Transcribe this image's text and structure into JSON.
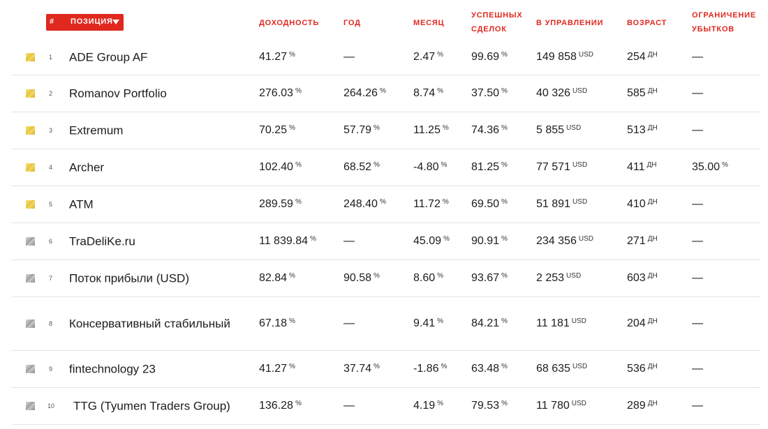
{
  "header": {
    "hash": "#",
    "position": "ПОЗИЦИЯ",
    "returns": "ДОХОДНОСТЬ",
    "year": "ГОД",
    "month": "МЕСЯЦ",
    "success_line1": "УСПЕШНЫХ",
    "success_line2": "СДЕЛОК",
    "managed": "В УПРАВЛЕНИИ",
    "age": "ВОЗРАСТ",
    "loss_line1": "ОГРАНИЧЕНИЕ",
    "loss_line2": "УБЫТКОВ"
  },
  "units": {
    "pct": "%",
    "usd": "USD",
    "days": "ДН"
  },
  "rows": [
    {
      "rank": "1",
      "name": "ADE Group AF",
      "flag": "gold",
      "returns": "41.27",
      "year": "—",
      "month": "2.47",
      "success": "99.69",
      "managed": "149 858",
      "age": "254",
      "loss": "—"
    },
    {
      "rank": "2",
      "name": "Romanov Portfolio",
      "flag": "gold",
      "returns": "276.03",
      "year": "264.26",
      "month": "8.74",
      "success": "37.50",
      "managed": "40 326",
      "age": "585",
      "loss": "—"
    },
    {
      "rank": "3",
      "name": "Extremum",
      "flag": "gold",
      "returns": "70.25",
      "year": "57.79",
      "month": "11.25",
      "success": "74.36",
      "managed": "5 855",
      "age": "513",
      "loss": "—"
    },
    {
      "rank": "4",
      "name": "Archer",
      "flag": "gold",
      "returns": "102.40",
      "year": "68.52",
      "month": "-4.80",
      "success": "81.25",
      "managed": "77 571",
      "age": "411",
      "loss": "35.00"
    },
    {
      "rank": "5",
      "name": "ATM",
      "flag": "gold",
      "returns": "289.59",
      "year": "248.40",
      "month": "11.72",
      "success": "69.50",
      "managed": "51 891",
      "age": "410",
      "loss": "—"
    },
    {
      "rank": "6",
      "name": "TraDeliKe.ru",
      "flag": "gray",
      "returns": "11 839.84",
      "year": "—",
      "month": "45.09",
      "success": "90.91",
      "managed": "234 356",
      "age": "271",
      "loss": "—"
    },
    {
      "rank": "7",
      "name": "Поток прибыли (USD)",
      "flag": "gray",
      "returns": "82.84",
      "year": "90.58",
      "month": "8.60",
      "success": "93.67",
      "managed": "2 253",
      "age": "603",
      "loss": "—"
    },
    {
      "rank": "8",
      "name": "Консервативный стабильный",
      "flag": "gray",
      "returns": "67.18",
      "year": "—",
      "month": "9.41",
      "success": "84.21",
      "managed": "11 181",
      "age": "204",
      "loss": "—"
    },
    {
      "rank": "9",
      "name": "fintechnology 23",
      "flag": "gray",
      "returns": "41.27",
      "year": "37.74",
      "month": "-1.86",
      "success": "63.48",
      "managed": "68 635",
      "age": "536",
      "loss": "—"
    },
    {
      "rank": "10",
      "name": "TTG (Tyumen Traders Group)",
      "flag": "gray",
      "returns": "136.28",
      "year": "—",
      "month": "4.19",
      "success": "79.53",
      "managed": "11 780",
      "age": "289",
      "loss": "—"
    }
  ]
}
